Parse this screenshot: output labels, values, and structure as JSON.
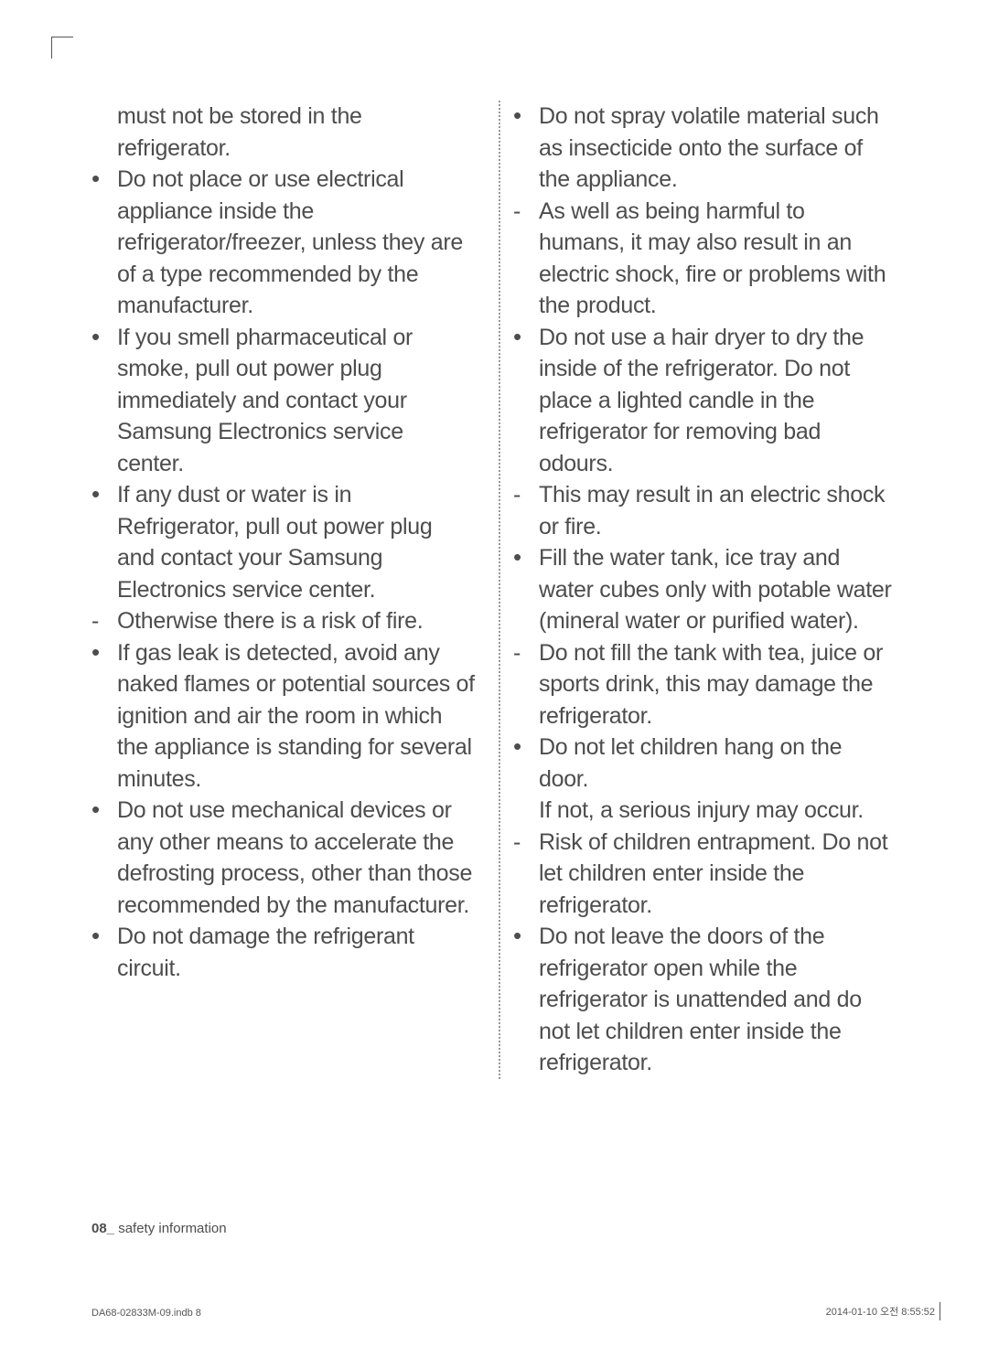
{
  "left_column": {
    "continuation": "must not be stored in the refrigerator.",
    "items": [
      {
        "marker": "bullet",
        "text": "Do not place or use electrical appliance inside the refrigerator/freezer, unless they are of a type recommended by the manufacturer."
      },
      {
        "marker": "bullet",
        "text": "If you smell pharmaceutical or smoke, pull out power plug immediately and contact your Samsung Electronics service center."
      },
      {
        "marker": "bullet",
        "text": "If any dust or water is in Refrigerator, pull out power plug and contact your Samsung Electronics service center."
      },
      {
        "marker": "dash",
        "text": "Otherwise there is a risk of fire."
      },
      {
        "marker": "bullet",
        "text": "If gas leak is detected, avoid any naked flames or potential sources of ignition and air the room in which the appliance is standing for several minutes."
      },
      {
        "marker": "bullet",
        "text": "Do not use mechanical devices or any other means to accelerate the defrosting process, other than those recommended by the manufacturer."
      },
      {
        "marker": "bullet",
        "text": "Do not damage the refrigerant circuit."
      }
    ]
  },
  "right_column": {
    "items": [
      {
        "marker": "bullet",
        "text": "Do not spray volatile material such as insecticide onto the surface of the appliance."
      },
      {
        "marker": "dash",
        "text": "As well as being harmful to humans, it may also result in an electric shock, fire or problems with the product."
      },
      {
        "marker": "bullet",
        "text": "Do not use a hair dryer to dry the inside of the refrigerator. Do not place a lighted candle in the refrigerator for removing bad odours."
      },
      {
        "marker": "dash",
        "text": "This may result in an electric shock or fire."
      },
      {
        "marker": "bullet",
        "text": "Fill the water tank, ice tray and water cubes only with potable water (mineral water or purified water)."
      },
      {
        "marker": "dash",
        "text": "Do not fill the tank with tea, juice or sports drink, this may damage the refrigerator."
      },
      {
        "marker": "bullet",
        "text": "Do not let children hang on the door.\nIf not, a serious injury may occur."
      },
      {
        "marker": "dash",
        "text": "Risk of children entrapment. Do not let children enter inside the refrigerator."
      },
      {
        "marker": "bullet",
        "text": "Do not leave the doors of the refrigerator open while the refrigerator is unattended and do not let children enter inside the refrigerator."
      }
    ]
  },
  "markers": {
    "bullet": "•",
    "dash": "-"
  },
  "footer": {
    "page_num": "08_",
    "section": " safety information"
  },
  "bottom": {
    "left": "DA68-02833M-09.indb   8",
    "right": "2014-01-10   오전 8:55:52"
  },
  "style": {
    "text_color": "#4d4d4d",
    "background": "#ffffff",
    "font_size_body": 25,
    "font_size_footer": 15,
    "font_size_bottom": 11,
    "divider_color": "#999999"
  }
}
